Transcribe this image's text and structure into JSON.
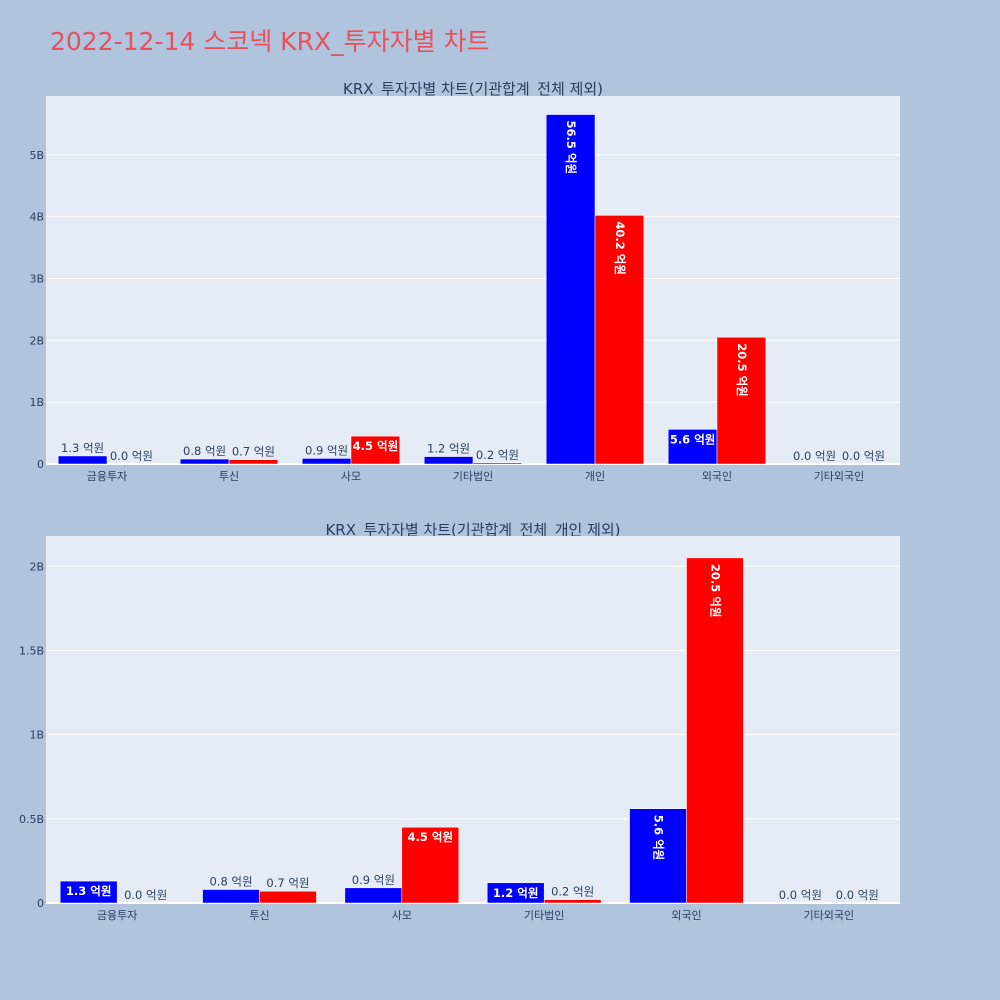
{
  "page_title": "2022-12-14 스코넥 KRX_투자자별 차트",
  "colors": {
    "background": "#b0c4de",
    "plot_bg": "#e5ecf6",
    "grid": "#ffffff",
    "title": "#e8505b",
    "text": "#2a3f5f",
    "series_1": "#0000ff",
    "series_2": "#ff0000"
  },
  "chart_data": [
    {
      "type": "bar",
      "title": "KRX_투자자별 차트(기관합계_전체 제외)",
      "categories": [
        "금융투자",
        "투신",
        "사모",
        "기타법인",
        "개인",
        "외국인",
        "기타외국인"
      ],
      "series": [
        {
          "color": "#0000ff",
          "values": [
            130000000,
            80000000,
            90000000,
            120000000,
            5650000000,
            560000000,
            0
          ],
          "labels": [
            "1.3 억원",
            "0.8 억원",
            "0.9 억원",
            "1.2 억원",
            "56.5 억원",
            "5.6 억원",
            "0.0 억원"
          ]
        },
        {
          "color": "#ff0000",
          "values": [
            0,
            70000000,
            450000000,
            20000000,
            4020000000,
            2050000000,
            0
          ],
          "labels": [
            "0.0 억원",
            "0.7 억원",
            "4.5 억원",
            "0.2 억원",
            "40.2 억원",
            "20.5 억원",
            "0.0 억원"
          ]
        }
      ],
      "yticks": [
        0,
        1000000000,
        2000000000,
        3000000000,
        4000000000,
        5000000000
      ],
      "ytick_labels": [
        "0",
        "1B",
        "2B",
        "3B",
        "4B",
        "5B"
      ],
      "ylim": [
        0,
        5950000000
      ],
      "grid": true
    },
    {
      "type": "bar",
      "title": "KRX_투자자별 차트(기관합계_전체_개인 제외)",
      "categories": [
        "금융투자",
        "투신",
        "사모",
        "기타법인",
        "외국인",
        "기타외국인"
      ],
      "series": [
        {
          "color": "#0000ff",
          "values": [
            130000000,
            80000000,
            90000000,
            120000000,
            560000000,
            0
          ],
          "labels": [
            "1.3 억원",
            "0.8 억원",
            "0.9 억원",
            "1.2 억원",
            "5.6 억원",
            "0.0 억원"
          ]
        },
        {
          "color": "#ff0000",
          "values": [
            0,
            70000000,
            450000000,
            20000000,
            2050000000,
            0
          ],
          "labels": [
            "0.0 억원",
            "0.7 억원",
            "4.5 억원",
            "0.2 억원",
            "20.5 억원",
            "0.0 억원"
          ]
        }
      ],
      "yticks": [
        0,
        500000000,
        1000000000,
        1500000000,
        2000000000
      ],
      "ytick_labels": [
        "0",
        "0.5B",
        "1B",
        "1.5B",
        "2B"
      ],
      "ylim": [
        0,
        2180000000
      ],
      "grid": true
    }
  ]
}
